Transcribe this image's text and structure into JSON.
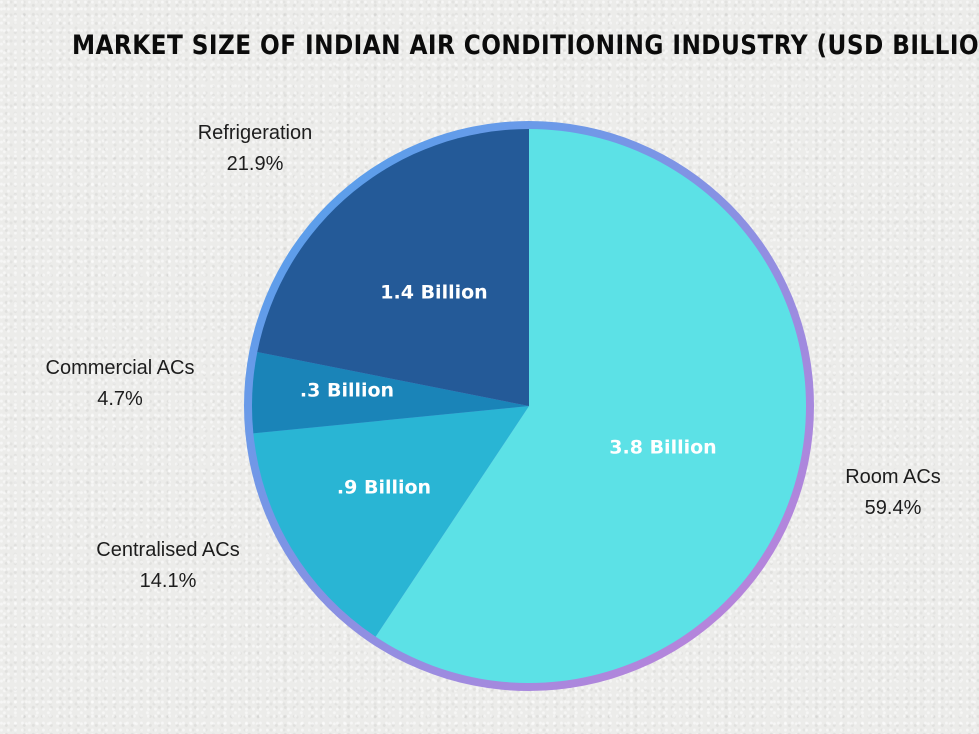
{
  "chart_data": {
    "type": "pie",
    "title": "MARKET SIZE OF INDIAN AIR CONDITIONING INDUSTRY (USD BILLION)",
    "slices": [
      {
        "name": "Room ACs",
        "percent_label": "59.4%",
        "percent": 59.4,
        "value_label": "3.8 Billion",
        "value": 3.8,
        "color": "#5ce1e6"
      },
      {
        "name": "Centralised ACs",
        "percent_label": "14.1%",
        "percent": 14.1,
        "value_label": ".9 Billion",
        "value": 0.9,
        "color": "#29b5d4"
      },
      {
        "name": "Commercial ACs",
        "percent_label": "4.7%",
        "percent": 4.7,
        "value_label": ".3 Billion",
        "value": 0.3,
        "color": "#1a84b8"
      },
      {
        "name": "Refrigeration",
        "percent_label": "21.9%",
        "percent": 21.9,
        "value_label": "1.4 Billion",
        "value": 1.4,
        "color": "#245a98"
      }
    ],
    "ring_gradient": [
      "#4aa3ee",
      "#c77fd8"
    ]
  }
}
